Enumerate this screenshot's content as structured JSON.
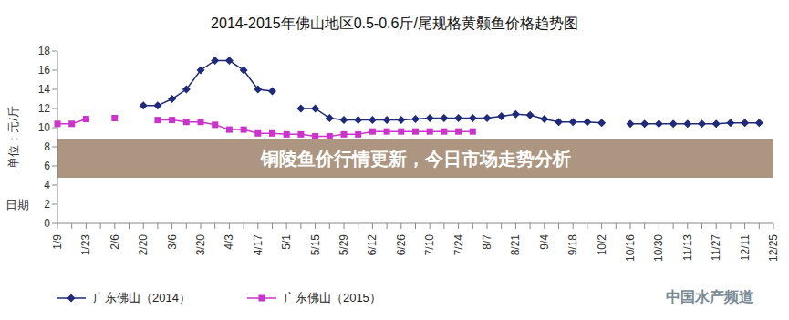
{
  "chart_data": {
    "type": "line",
    "title": "2014-2015年佛山地区0.5-0.6斤/尾规格黄颡鱼价格趋势图",
    "y_label": "单位：元/斤",
    "x_label": "日期",
    "annotations": [
      "铜陵鱼价行情更新，今日市场走势分析",
      "中国水产频道"
    ],
    "categories": [
      "1/9",
      null,
      "1/23",
      null,
      "2/6",
      null,
      "2/20",
      null,
      "3/6",
      null,
      "3/20",
      null,
      "4/3",
      null,
      "4/17",
      null,
      "5/1",
      null,
      "5/15",
      null,
      "5/29",
      null,
      "6/12",
      null,
      "6/26",
      null,
      "7/10",
      null,
      "7/24",
      null,
      "8/7",
      null,
      "8/21",
      null,
      "9/4",
      null,
      "9/18",
      null,
      "10/2",
      null,
      "10/16",
      null,
      "10/30",
      null,
      "11/13",
      null,
      "11/27",
      null,
      "12/11",
      null,
      "12/25"
    ],
    "series": [
      {
        "name": "广东佛山（2014）",
        "color": "#1f2a7a",
        "marker": "diamond",
        "values": [
          null,
          null,
          null,
          null,
          null,
          null,
          12.3,
          12.3,
          13,
          14,
          16,
          17,
          17,
          16,
          14,
          13.8,
          null,
          12,
          12,
          11,
          10.8,
          10.8,
          10.8,
          10.8,
          10.8,
          10.9,
          11,
          11,
          11,
          11,
          11,
          11.2,
          11.4,
          11.3,
          10.9,
          10.6,
          10.6,
          10.6,
          10.5,
          null,
          10.4,
          10.4,
          10.4,
          10.4,
          10.4,
          10.4,
          10.4,
          10.5,
          10.5,
          10.5,
          null
        ]
      },
      {
        "name": "广东佛山（2015）",
        "color": "#cc33cc",
        "marker": "square",
        "values": [
          10.4,
          10.4,
          10.9,
          null,
          11,
          null,
          null,
          10.8,
          10.8,
          10.6,
          10.6,
          10.3,
          9.8,
          9.8,
          9.4,
          9.4,
          9.3,
          9.3,
          9.1,
          9.1,
          9.3,
          9.3,
          9.6,
          9.6,
          9.6,
          9.6,
          9.6,
          9.6,
          9.6,
          9.6,
          null,
          null,
          null,
          null,
          null,
          null,
          null,
          null,
          null,
          null,
          null,
          null,
          null,
          null,
          null,
          null,
          null,
          null,
          null,
          null,
          null
        ]
      }
    ],
    "ylim": [
      0,
      18
    ],
    "yticks": [
      0,
      2,
      4,
      6,
      8,
      10,
      12,
      14,
      16,
      18
    ],
    "grid": false,
    "legend": "bottom"
  }
}
